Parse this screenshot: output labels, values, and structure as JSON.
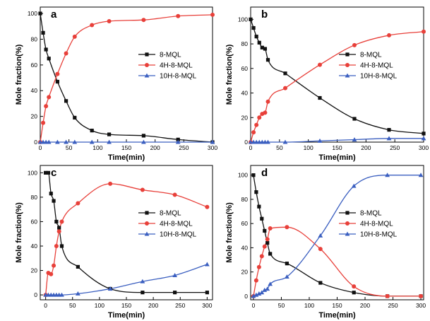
{
  "figure": {
    "background": "#ffffff"
  },
  "series_styles": [
    {
      "color": "#111111",
      "marker": "square"
    },
    {
      "color": "#e8403a",
      "marker": "circle"
    },
    {
      "color": "#3b5fc0",
      "marker": "triangle"
    }
  ],
  "chart_data": [
    {
      "type": "scatter",
      "panel": "a",
      "xlabel": "Time(min)",
      "ylabel": "Mole fraction(%)",
      "xlim": [
        0,
        300
      ],
      "ylim": [
        0,
        105
      ],
      "xticks": [
        0,
        50,
        100,
        150,
        200,
        250,
        300
      ],
      "yticks": [
        0,
        20,
        40,
        60,
        80,
        100
      ],
      "legend_position": "center-right",
      "series": [
        {
          "name": "8-MQL",
          "x": [
            0,
            5,
            10,
            15,
            30,
            45,
            60,
            90,
            120,
            180,
            240,
            300
          ],
          "y": [
            100,
            85,
            72,
            65,
            47,
            32,
            19,
            9,
            6,
            5,
            2,
            0
          ]
        },
        {
          "name": "4H-8-MQL",
          "x": [
            0,
            5,
            10,
            15,
            30,
            45,
            60,
            90,
            120,
            180,
            240,
            300
          ],
          "y": [
            0,
            15,
            28,
            35,
            53,
            69,
            82,
            91,
            94,
            95,
            98,
            99
          ]
        },
        {
          "name": "10H-8-MQL",
          "x": [
            0,
            5,
            10,
            15,
            30,
            45,
            60,
            90,
            120,
            180,
            240,
            300
          ],
          "y": [
            0,
            0,
            0,
            0,
            0,
            0,
            0,
            0,
            0,
            0,
            0,
            0
          ]
        }
      ]
    },
    {
      "type": "scatter",
      "panel": "b",
      "xlabel": "Time(min)",
      "ylabel": "Mole fraction(%)",
      "xlim": [
        0,
        300
      ],
      "ylim": [
        0,
        110
      ],
      "xticks": [
        0,
        50,
        100,
        150,
        200,
        250,
        300
      ],
      "yticks": [
        0,
        20,
        40,
        60,
        80,
        100
      ],
      "legend_position": "center-right",
      "series": [
        {
          "name": "8-MQL",
          "x": [
            0,
            5,
            10,
            15,
            20,
            25,
            30,
            60,
            120,
            180,
            240,
            300
          ],
          "y": [
            100,
            93,
            86,
            81,
            77,
            76,
            67,
            56,
            36,
            19,
            10,
            7
          ]
        },
        {
          "name": "4H-8-MQL",
          "x": [
            0,
            5,
            10,
            15,
            20,
            25,
            30,
            60,
            120,
            180,
            240,
            300
          ],
          "y": [
            0,
            8,
            14,
            20,
            23,
            24,
            33,
            44,
            63,
            79,
            87,
            90
          ]
        },
        {
          "name": "10H-8-MQL",
          "x": [
            0,
            5,
            10,
            15,
            20,
            25,
            30,
            60,
            120,
            180,
            240,
            300
          ],
          "y": [
            0,
            0,
            0,
            0,
            0,
            0,
            0,
            0,
            1,
            2,
            3,
            3
          ]
        }
      ]
    },
    {
      "type": "scatter",
      "panel": "c",
      "xlabel": "Time(min)",
      "ylabel": "Mole fraction(%)",
      "xlim": [
        -10,
        310
      ],
      "ylim": [
        -4,
        106
      ],
      "xticks": [
        0,
        50,
        100,
        150,
        200,
        250,
        300
      ],
      "yticks": [
        0,
        20,
        40,
        60,
        80,
        100
      ],
      "legend_position": "center-right",
      "series": [
        {
          "name": "8-MQL",
          "x": [
            0,
            5,
            10,
            15,
            20,
            25,
            30,
            60,
            120,
            180,
            240,
            300
          ],
          "y": [
            100,
            100,
            83,
            77,
            60,
            55,
            40,
            23,
            5,
            2,
            2,
            2
          ]
        },
        {
          "name": "4H-8-MQL",
          "x": [
            0,
            5,
            10,
            15,
            20,
            25,
            30,
            60,
            120,
            180,
            240,
            300
          ],
          "y": [
            0,
            18,
            17,
            24,
            40,
            52,
            60,
            75,
            91,
            86,
            82,
            72
          ]
        },
        {
          "name": "10H-8-MQL",
          "x": [
            0,
            5,
            10,
            15,
            20,
            25,
            30,
            60,
            120,
            180,
            240,
            300
          ],
          "y": [
            0,
            0,
            0,
            0,
            0,
            0,
            0,
            1,
            5,
            11,
            16,
            25
          ]
        }
      ]
    },
    {
      "type": "scatter",
      "panel": "d",
      "xlabel": "Time(min)",
      "ylabel": "Mole fraction(%)",
      "xlim": [
        -5,
        305
      ],
      "ylim": [
        -3,
        108
      ],
      "xticks": [
        0,
        50,
        100,
        150,
        200,
        250,
        300
      ],
      "yticks": [
        0,
        20,
        40,
        60,
        80,
        100
      ],
      "legend_position": "center-right",
      "series": [
        {
          "name": "8-MQL",
          "x": [
            0,
            5,
            10,
            15,
            20,
            25,
            30,
            60,
            120,
            180,
            240,
            300
          ],
          "y": [
            100,
            86,
            74,
            64,
            54,
            44,
            35,
            27,
            11,
            3,
            0,
            0
          ]
        },
        {
          "name": "4H-8-MQL",
          "x": [
            0,
            5,
            10,
            15,
            20,
            25,
            30,
            60,
            120,
            180,
            240,
            300
          ],
          "y": [
            0,
            13,
            24,
            33,
            41,
            47,
            56,
            57,
            39,
            8,
            0,
            0
          ]
        },
        {
          "name": "10H-8-MQL",
          "x": [
            0,
            5,
            10,
            15,
            20,
            25,
            30,
            60,
            120,
            180,
            240,
            300
          ],
          "y": [
            0,
            1,
            2,
            3,
            5,
            6,
            10,
            16,
            50,
            91,
            100,
            100
          ]
        }
      ]
    }
  ]
}
